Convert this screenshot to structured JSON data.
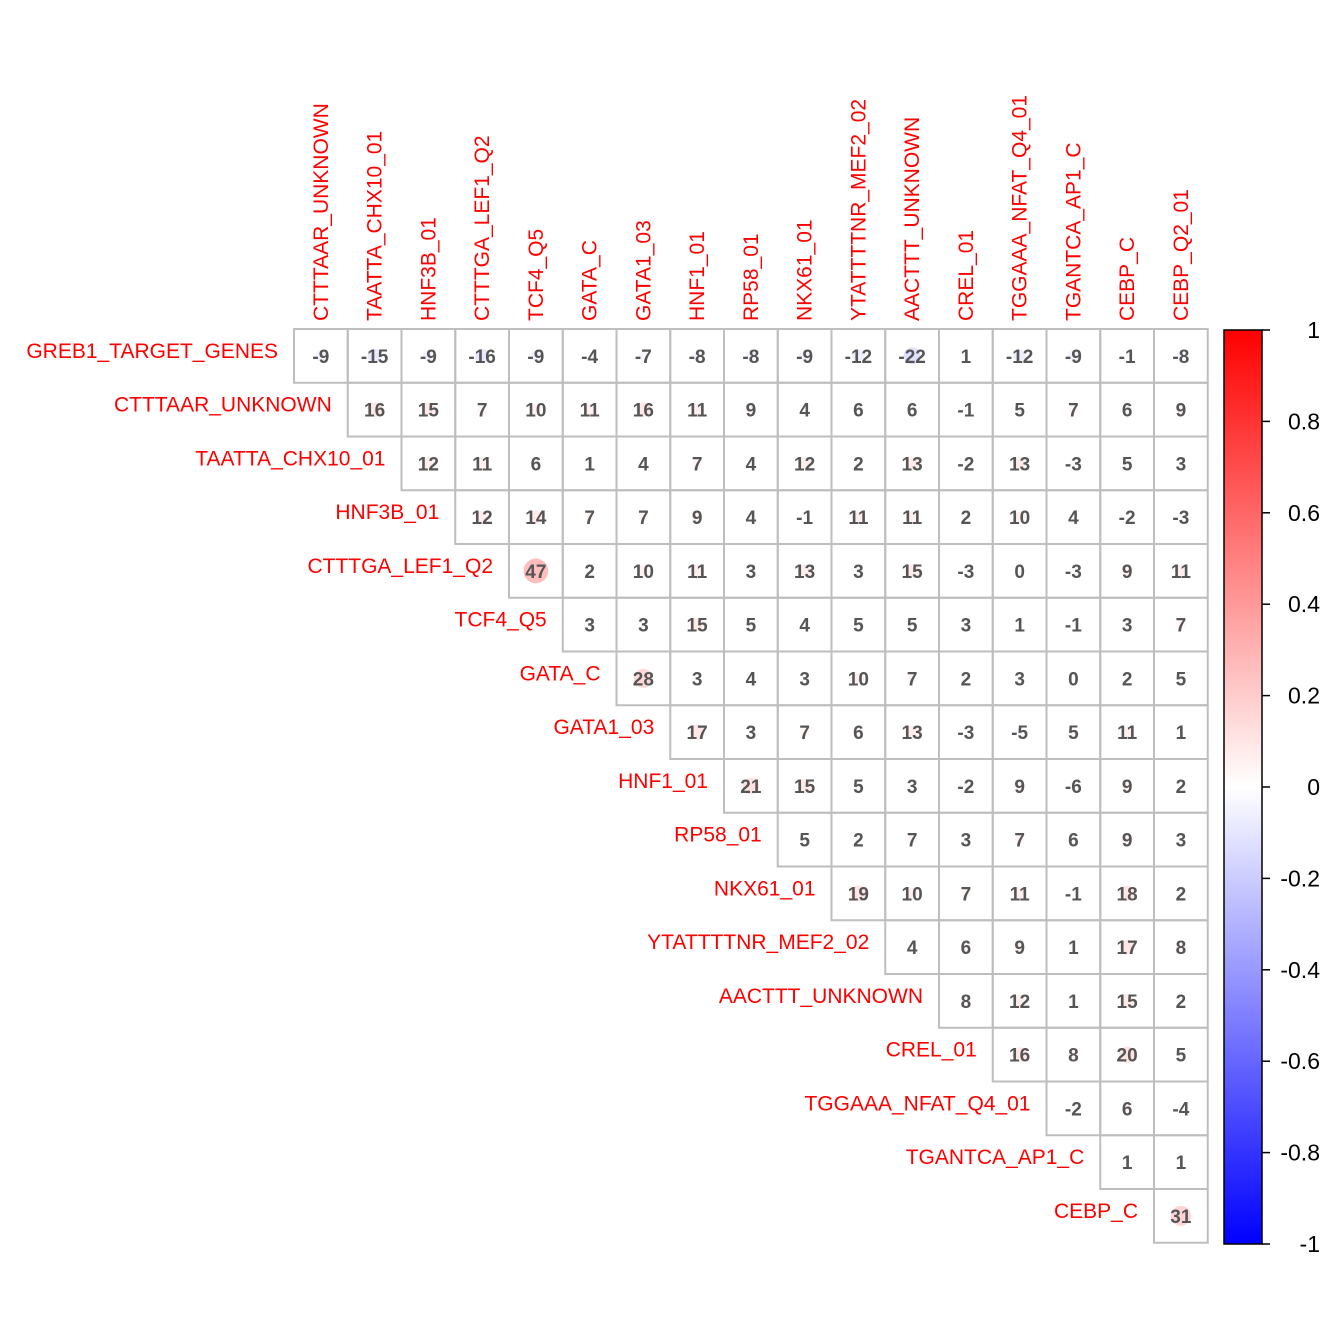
{
  "chart_data": {
    "type": "heatmap",
    "subtype": "correlation-matrix-upper-triangle-circles",
    "title": "",
    "row_labels": [
      "GREB1_TARGET_GENES",
      "CTTTAAR_UNKNOWN",
      "TAATTA_CHX10_01",
      "HNF3B_01",
      "CTTTGA_LEF1_Q2",
      "TCF4_Q5",
      "GATA_C",
      "GATA1_03",
      "HNF1_01",
      "RP58_01",
      "NKX61_01",
      "YTATTTTNR_MEF2_02",
      "AACTTT_UNKNOWN",
      "CREL_01",
      "TGGAAA_NFAT_Q4_01",
      "TGANTCA_AP1_C",
      "CEBP_C"
    ],
    "col_labels": [
      "CTTTAAR_UNKNOWN",
      "TAATTA_CHX10_01",
      "HNF3B_01",
      "CTTTGA_LEF1_Q2",
      "TCF4_Q5",
      "GATA_C",
      "GATA1_03",
      "HNF1_01",
      "RP58_01",
      "NKX61_01",
      "YTATTTTNR_MEF2_02",
      "AACTTT_UNKNOWN",
      "CREL_01",
      "TGGAAA_NFAT_Q4_01",
      "TGANTCA_AP1_C",
      "CEBP_C",
      "CEBP_Q2_01"
    ],
    "values": [
      [
        -9,
        -15,
        -9,
        -16,
        -9,
        -4,
        -7,
        -8,
        -8,
        -9,
        -12,
        -22,
        1,
        -12,
        -9,
        -1,
        -8
      ],
      [
        16,
        15,
        7,
        10,
        11,
        16,
        11,
        9,
        4,
        6,
        6,
        -1,
        5,
        7,
        6,
        9
      ],
      [
        12,
        11,
        6,
        1,
        4,
        7,
        4,
        12,
        2,
        13,
        -2,
        13,
        -3,
        5,
        3
      ],
      [
        12,
        14,
        7,
        7,
        9,
        4,
        -1,
        11,
        11,
        2,
        10,
        4,
        -2,
        -3
      ],
      [
        47,
        2,
        10,
        11,
        3,
        13,
        3,
        15,
        -3,
        0,
        -3,
        9,
        11
      ],
      [
        3,
        3,
        15,
        5,
        4,
        5,
        5,
        3,
        1,
        -1,
        3,
        7
      ],
      [
        28,
        3,
        4,
        3,
        10,
        7,
        2,
        3,
        0,
        2,
        5
      ],
      [
        17,
        3,
        7,
        6,
        13,
        -3,
        -5,
        5,
        11,
        1
      ],
      [
        21,
        15,
        5,
        3,
        -2,
        9,
        -6,
        9,
        2
      ],
      [
        5,
        2,
        7,
        3,
        7,
        6,
        9,
        3
      ],
      [
        19,
        10,
        7,
        11,
        -1,
        18,
        2
      ],
      [
        4,
        6,
        9,
        1,
        17,
        8
      ],
      [
        8,
        12,
        1,
        15,
        2
      ],
      [
        16,
        8,
        20,
        5
      ],
      [
        -2,
        6,
        -4
      ],
      [
        1,
        1
      ],
      [
        31
      ]
    ],
    "value_scale": "correlation x 100",
    "color_scale": {
      "min": -1,
      "max": 1,
      "low": "#0000ff",
      "mid": "#ffffff",
      "high": "#ff0000"
    },
    "colorbar_ticks": [
      "1",
      "0.8",
      "0.6",
      "0.4",
      "0.2",
      "0",
      "-0.2",
      "-0.4",
      "-0.6",
      "-0.8",
      "-1"
    ],
    "label_color": "#ff0000",
    "value_text_color": "#555555",
    "grid_color": "#bebebe"
  }
}
